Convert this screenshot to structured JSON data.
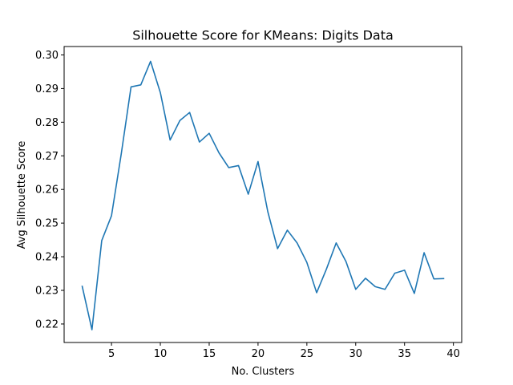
{
  "chart_data": {
    "type": "line",
    "title": "Silhouette Score for KMeans: Digits Data",
    "xlabel": "No. Clusters",
    "ylabel": "Avg Silhouette Score",
    "xlim": [
      0.15,
      40.85
    ],
    "ylim": [
      0.2145,
      0.3025
    ],
    "x_ticks": [
      5,
      10,
      15,
      20,
      25,
      30,
      35,
      40
    ],
    "x_tick_labels": [
      "5",
      "10",
      "15",
      "20",
      "25",
      "30",
      "35",
      "40"
    ],
    "y_ticks": [
      0.22,
      0.23,
      0.24,
      0.25,
      0.26,
      0.27,
      0.28,
      0.29,
      0.3
    ],
    "y_tick_labels": [
      "0.22",
      "0.23",
      "0.24",
      "0.25",
      "0.26",
      "0.27",
      "0.28",
      "0.29",
      "0.30"
    ],
    "grid": false,
    "legend": "none",
    "line_color": "#1f77b4",
    "series": [
      {
        "x": [
          2,
          3,
          4,
          5,
          6,
          7,
          8,
          9,
          10,
          11,
          12,
          13,
          14,
          15,
          16,
          17,
          18,
          19,
          20,
          21,
          22,
          23,
          24,
          25,
          26,
          27,
          28,
          29,
          30,
          31,
          32,
          33,
          34,
          35,
          36,
          37,
          38,
          39
        ],
        "values": [
          0.2312,
          0.2183,
          0.2448,
          0.2522,
          0.2706,
          0.2905,
          0.2911,
          0.2981,
          0.2888,
          0.2747,
          0.2805,
          0.2829,
          0.2741,
          0.2767,
          0.2709,
          0.2665,
          0.2671,
          0.2586,
          0.2683,
          0.2534,
          0.2424,
          0.2479,
          0.2441,
          0.2383,
          0.2293,
          0.2363,
          0.2441,
          0.2386,
          0.2303,
          0.2336,
          0.2311,
          0.2303,
          0.2351,
          0.236,
          0.2291,
          0.2412,
          0.2334,
          0.2335
        ]
      }
    ]
  }
}
